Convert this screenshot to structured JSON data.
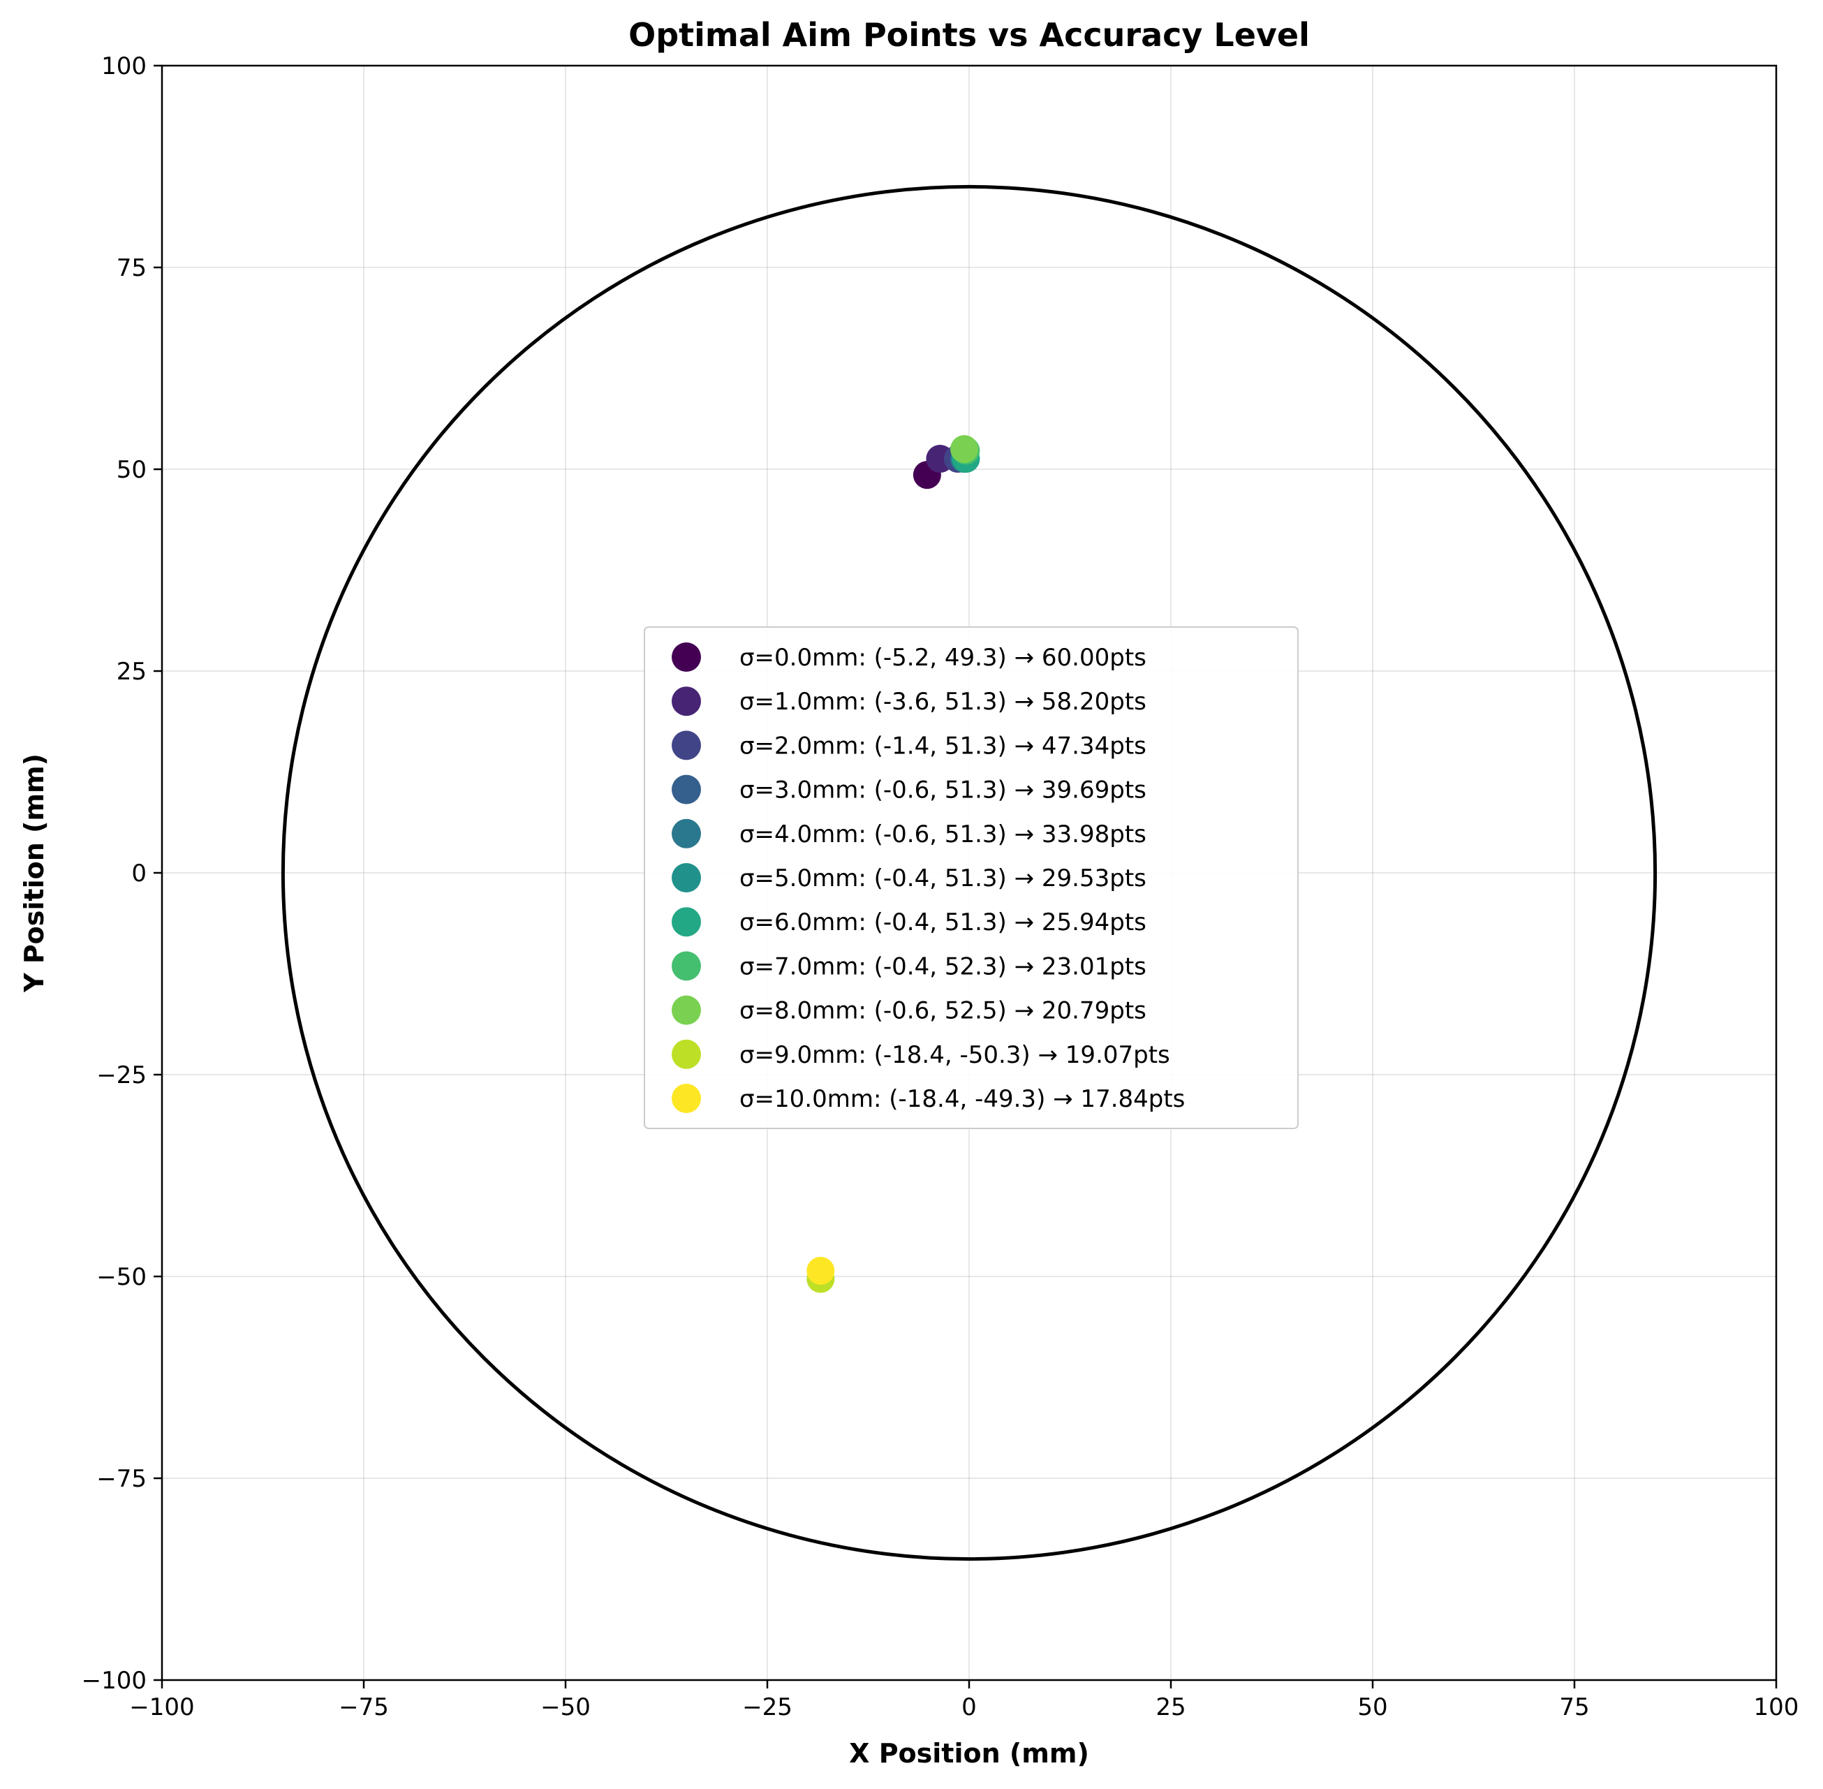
{
  "chart_data": {
    "type": "scatter",
    "title": "Optimal Aim Points vs Accuracy Level",
    "xlabel": "X Position (mm)",
    "ylabel": "Y Position (mm)",
    "xlim": [
      -100,
      100
    ],
    "ylim": [
      -100,
      100
    ],
    "xticks": [
      -100,
      -75,
      -50,
      -25,
      0,
      25,
      50,
      75,
      100
    ],
    "yticks": [
      -100,
      -75,
      -50,
      -25,
      0,
      25,
      50,
      75,
      100
    ],
    "xtick_labels": [
      "−100",
      "−75",
      "−50",
      "−25",
      "0",
      "25",
      "50",
      "75",
      "100"
    ],
    "ytick_labels": [
      "−100",
      "−75",
      "−50",
      "−25",
      "0",
      "25",
      "50",
      "75",
      "100"
    ],
    "grid": true,
    "legend_position": "center",
    "board_circle": {
      "center": [
        0,
        0
      ],
      "radius": 85,
      "color": "#000000"
    },
    "series": [
      {
        "name": "σ=0.0mm: (-5.2, 49.3) → 60.00pts",
        "x": -5.2,
        "y": 49.3,
        "color": "#440154"
      },
      {
        "name": "σ=1.0mm: (-3.6, 51.3) → 58.20pts",
        "x": -3.6,
        "y": 51.3,
        "color": "#482475"
      },
      {
        "name": "σ=2.0mm: (-1.4, 51.3) → 47.34pts",
        "x": -1.4,
        "y": 51.3,
        "color": "#414487"
      },
      {
        "name": "σ=3.0mm: (-0.6, 51.3) → 39.69pts",
        "x": -0.6,
        "y": 51.3,
        "color": "#355f8d"
      },
      {
        "name": "σ=4.0mm: (-0.6, 51.3) → 33.98pts",
        "x": -0.6,
        "y": 51.3,
        "color": "#2a788e"
      },
      {
        "name": "σ=5.0mm: (-0.4, 51.3) → 29.53pts",
        "x": -0.4,
        "y": 51.3,
        "color": "#21918c"
      },
      {
        "name": "σ=6.0mm: (-0.4, 51.3) → 25.94pts",
        "x": -0.4,
        "y": 51.3,
        "color": "#22a884"
      },
      {
        "name": "σ=7.0mm: (-0.4, 52.3) → 23.01pts",
        "x": -0.4,
        "y": 52.3,
        "color": "#44bf70"
      },
      {
        "name": "σ=8.0mm: (-0.6, 52.5) → 20.79pts",
        "x": -0.6,
        "y": 52.5,
        "color": "#7ad151"
      },
      {
        "name": "σ=9.0mm: (-18.4, -50.3) → 19.07pts",
        "x": -18.4,
        "y": -50.3,
        "color": "#bddf26"
      },
      {
        "name": "σ=10.0mm: (-18.4, -49.3) → 17.84pts",
        "x": -18.4,
        "y": -49.3,
        "color": "#fde725"
      }
    ]
  }
}
